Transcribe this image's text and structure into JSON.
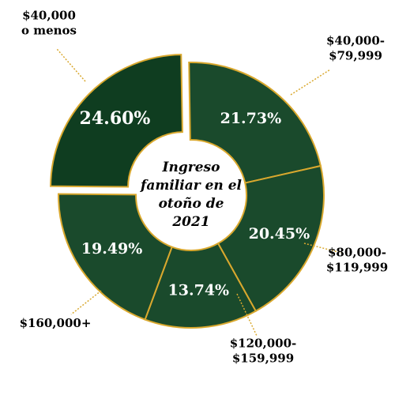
{
  "chart_data": {
    "type": "donut",
    "center_label": [
      "Ingreso",
      "familiar en el",
      "otoño de",
      "2021"
    ],
    "categories": [
      [
        "$40,000",
        "o menos"
      ],
      [
        "$40,000-",
        "$79,999"
      ],
      [
        "$80,000-",
        "$119,999"
      ],
      [
        "$120,000-",
        "$159,999"
      ],
      [
        "$160,000+"
      ]
    ],
    "values": [
      24.6,
      21.73,
      20.45,
      13.74,
      19.49
    ],
    "value_labels": [
      "24.60%",
      "21.73%",
      "20.45%",
      "13.74%",
      "19.49%"
    ],
    "colors": [
      "#0f3d20",
      "#1a4a2c",
      "#1a4a2c",
      "#1a4a2c",
      "#1a4a2c"
    ],
    "border_color": "#d9a82e",
    "exploded": [
      0
    ]
  }
}
